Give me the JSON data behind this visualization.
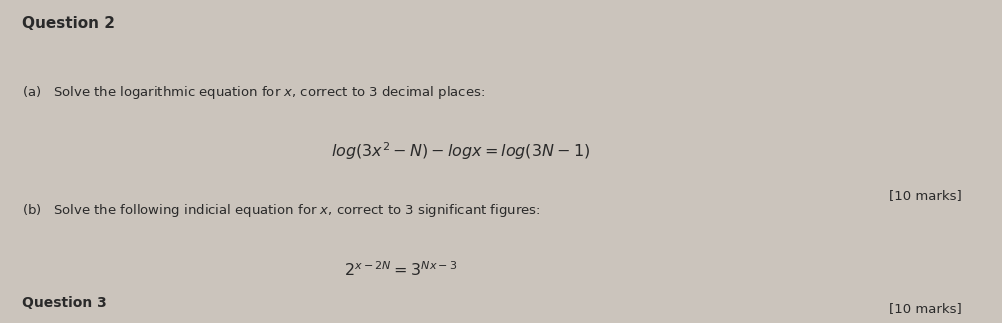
{
  "bg_color": "#cbc4bc",
  "text_color": "#2a2a2a",
  "title": "Question 2",
  "part_a_intro": "(a)   Solve the logarithmic equation for $x$, correct to 3 decimal places:",
  "part_a_eq": "$log(3x^2 - N) - logx = log(3N - 1)$",
  "part_a_marks": "[10 marks]",
  "part_b_intro": "(b)   Solve the following indicial equation for $x$, correct to 3 significant figures:",
  "part_b_eq": "$2^{x-2N} = 3^{Nx-3}$",
  "part_b_marks": "[10 marks]",
  "footer": "Question 3",
  "figwidth": 10.02,
  "figheight": 3.23,
  "dpi": 100
}
